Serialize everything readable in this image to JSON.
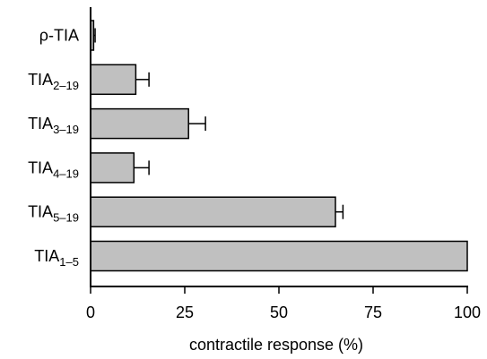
{
  "chart_data": {
    "type": "bar",
    "orientation": "horizontal",
    "categories": [
      {
        "base": "ρ-TIA",
        "sub": ""
      },
      {
        "base": "TIA",
        "sub": "2–19"
      },
      {
        "base": "TIA",
        "sub": "3–19"
      },
      {
        "base": "TIA",
        "sub": "4–19"
      },
      {
        "base": "TIA",
        "sub": "5–19"
      },
      {
        "base": "TIA",
        "sub": "1–5"
      }
    ],
    "values": [
      0.8,
      12,
      26,
      11.5,
      65,
      100
    ],
    "errors": [
      0.4,
      3.5,
      4.5,
      4,
      2,
      0
    ],
    "xlabel": "contractile response (%)",
    "ylabel": "",
    "title": "",
    "xlim": [
      0,
      100
    ],
    "xticks": [
      0,
      25,
      50,
      75,
      100
    ],
    "grid": false,
    "colors": {
      "bar_fill": "#c0c0c0",
      "bar_stroke": "#000000",
      "axis": "#000000"
    }
  }
}
